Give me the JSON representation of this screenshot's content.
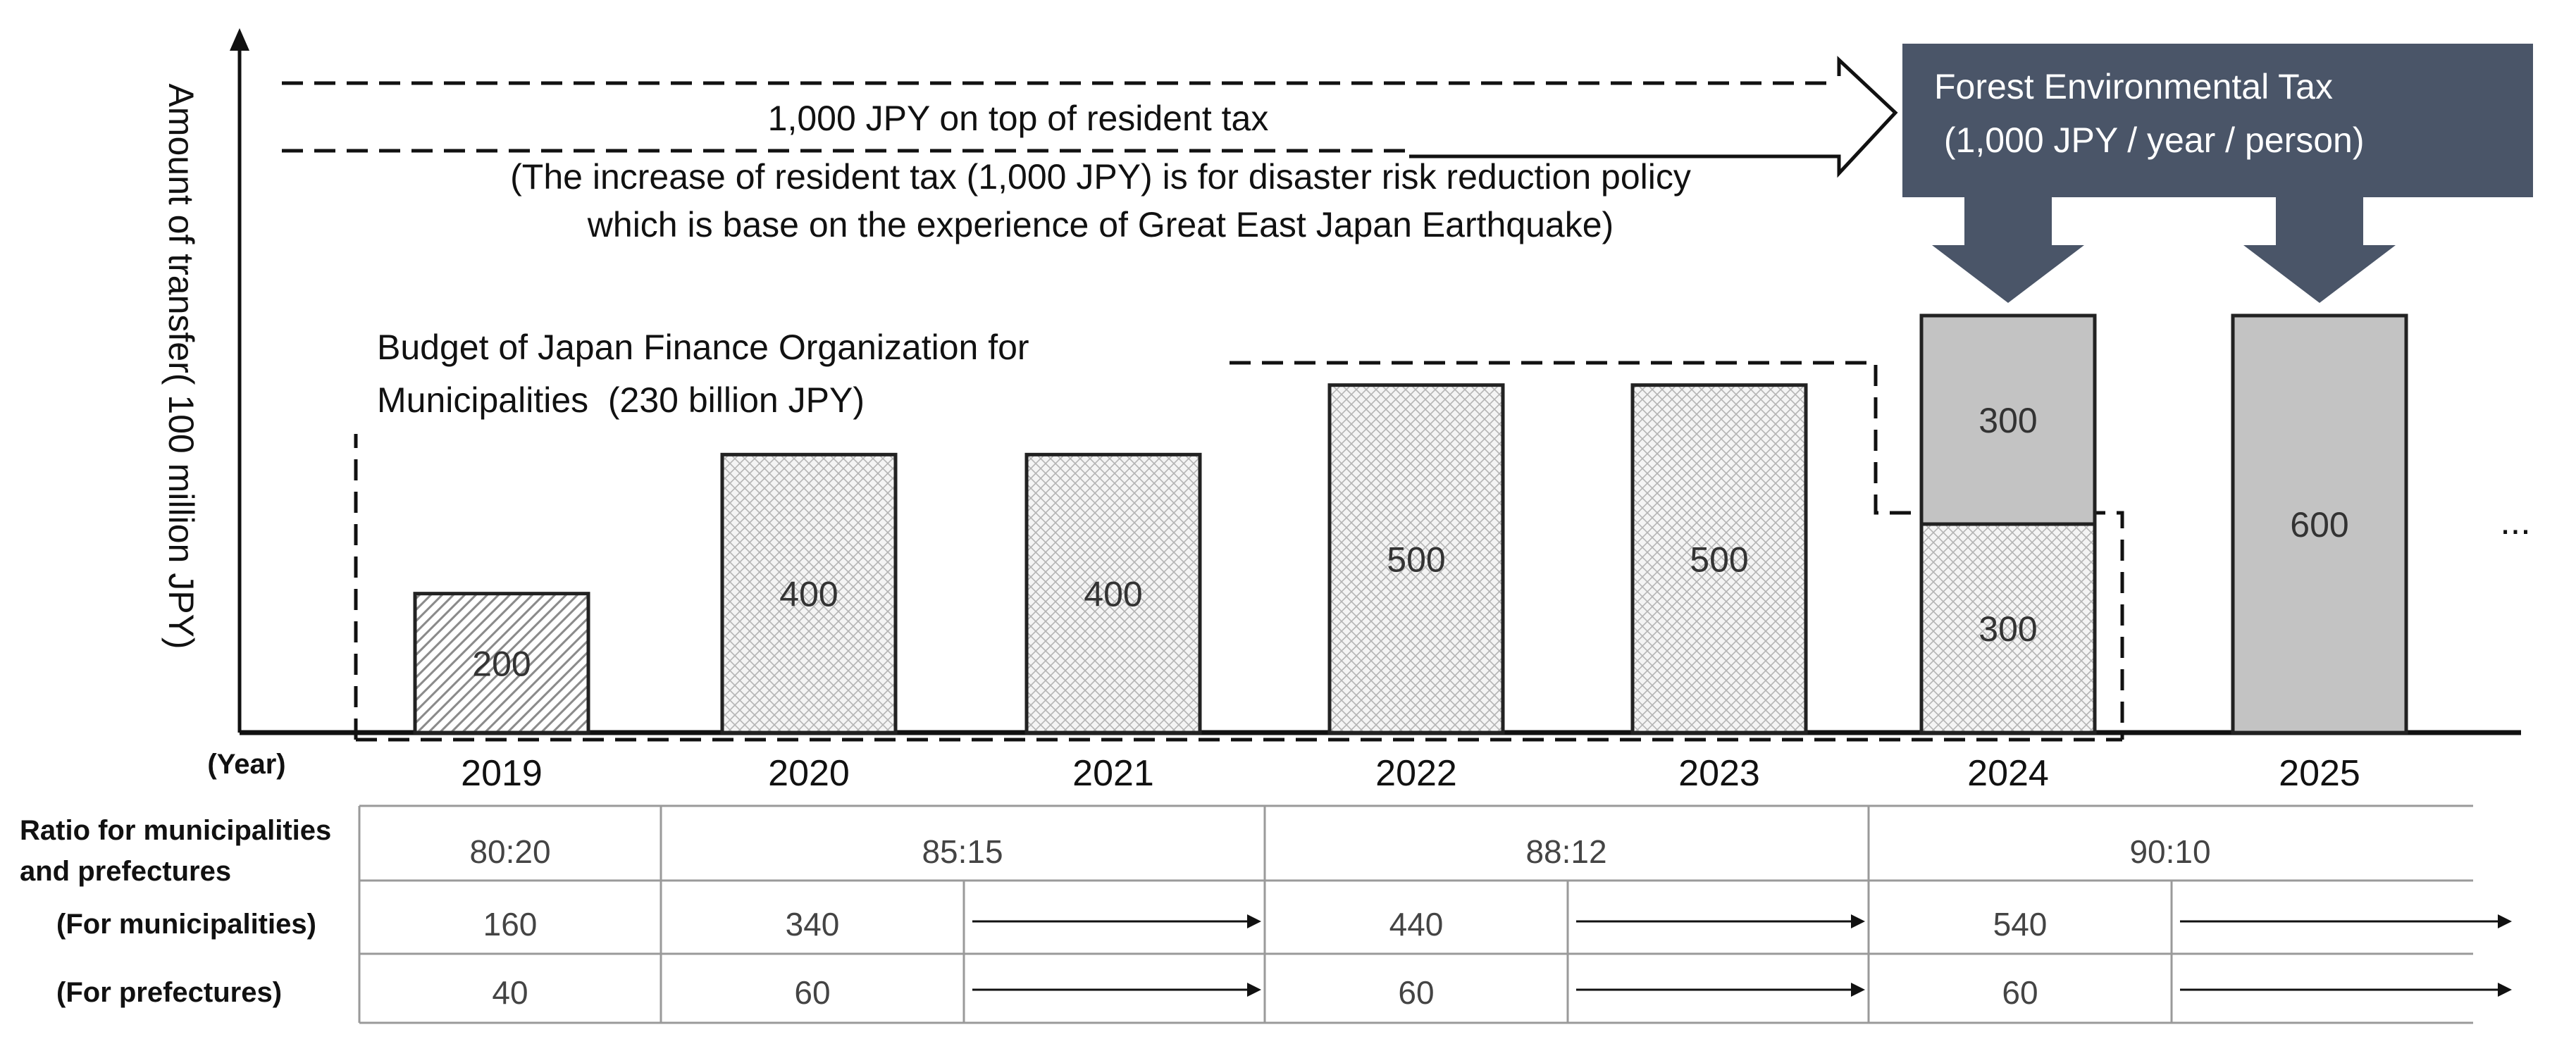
{
  "chart_data": {
    "type": "bar",
    "ylabel": "Amount of transfer( 100 million JPY)",
    "xlabel": "(Year)",
    "categories": [
      "2019",
      "2020",
      "2021",
      "2022",
      "2023",
      "2024",
      "2025"
    ],
    "series": [
      {
        "name": "Japan Finance Organization for Municipalities budget",
        "values": [
          200,
          400,
          400,
          500,
          500,
          300,
          null
        ],
        "value_labels": [
          "200",
          "400",
          "400",
          "500",
          "500",
          "300",
          ""
        ]
      },
      {
        "name": "Forest Environmental Tax",
        "values": [
          null,
          null,
          null,
          null,
          null,
          300,
          600
        ],
        "value_labels": [
          "",
          "",
          "",
          "",
          "",
          "300",
          "600"
        ]
      }
    ],
    "ylim": [
      0,
      600
    ],
    "continuation": "..."
  },
  "annotations": {
    "arrow_line1": "1,000 JPY on top of resident tax",
    "arrow_line2": "(The increase of resident tax (1,000 JPY) is for disaster risk reduction policy",
    "arrow_line3": "which is base on the experience of Great East Japan Earthquake)",
    "budget_line1": "Budget of Japan Finance Organization for",
    "budget_line2": "Municipalities  (230 billion JPY)",
    "tax_line1": "Forest Environmental Tax",
    "tax_line2": " (1,000 JPY / year / person)"
  },
  "table": {
    "row_labels": {
      "ratio_line1": "Ratio for municipalities",
      "ratio_line2": "and prefectures",
      "municipalities": "(For municipalities)",
      "prefectures": "(For prefectures)"
    },
    "ratios": [
      "80:20",
      "85:15",
      "88:12",
      "90:10"
    ],
    "municipalities": [
      "160",
      "340",
      "440",
      "540"
    ],
    "prefectures": [
      "40",
      "60",
      "60",
      "60"
    ]
  },
  "colors": {
    "axis": "#111111",
    "hatch_bar": "#ffffff",
    "tax_bar": "#c3c3c3",
    "tax_box": "#4a5568",
    "table_line": "#9a9a9a"
  }
}
